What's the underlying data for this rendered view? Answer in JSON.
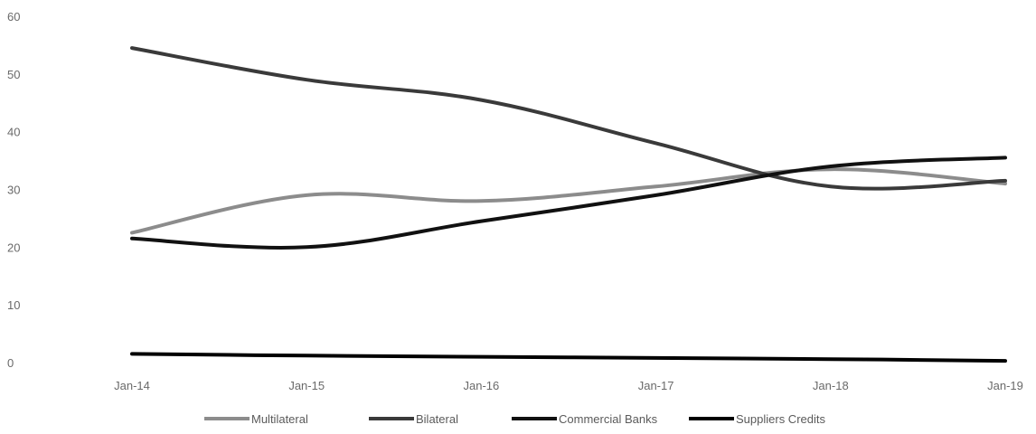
{
  "chart_data": {
    "type": "line",
    "title": "",
    "xlabel": "",
    "ylabel": "",
    "categories": [
      "Jan-14",
      "Jan-15",
      "Jan-16",
      "Jan-17",
      "Jan-18",
      "Jan-19"
    ],
    "ylim": [
      0,
      60
    ],
    "yticks": [
      0,
      10,
      20,
      30,
      40,
      50,
      60
    ],
    "grid": false,
    "legend_position": "bottom",
    "series": [
      {
        "name": "Multilateral",
        "color": "#8c8c8c",
        "values": [
          22.5,
          29,
          28,
          30.5,
          33.5,
          31
        ]
      },
      {
        "name": "Bilateral",
        "color": "#3a3a3a",
        "values": [
          54.5,
          49,
          45.5,
          38,
          30.5,
          31.5
        ]
      },
      {
        "name": "Commercial Banks",
        "color": "#111111",
        "values": [
          21.5,
          20,
          24.5,
          29,
          34,
          35.5
        ]
      },
      {
        "name": "Suppliers Credits",
        "color": "#000000",
        "values": [
          1.5,
          1.2,
          1,
          0.8,
          0.6,
          0.3
        ]
      }
    ]
  }
}
